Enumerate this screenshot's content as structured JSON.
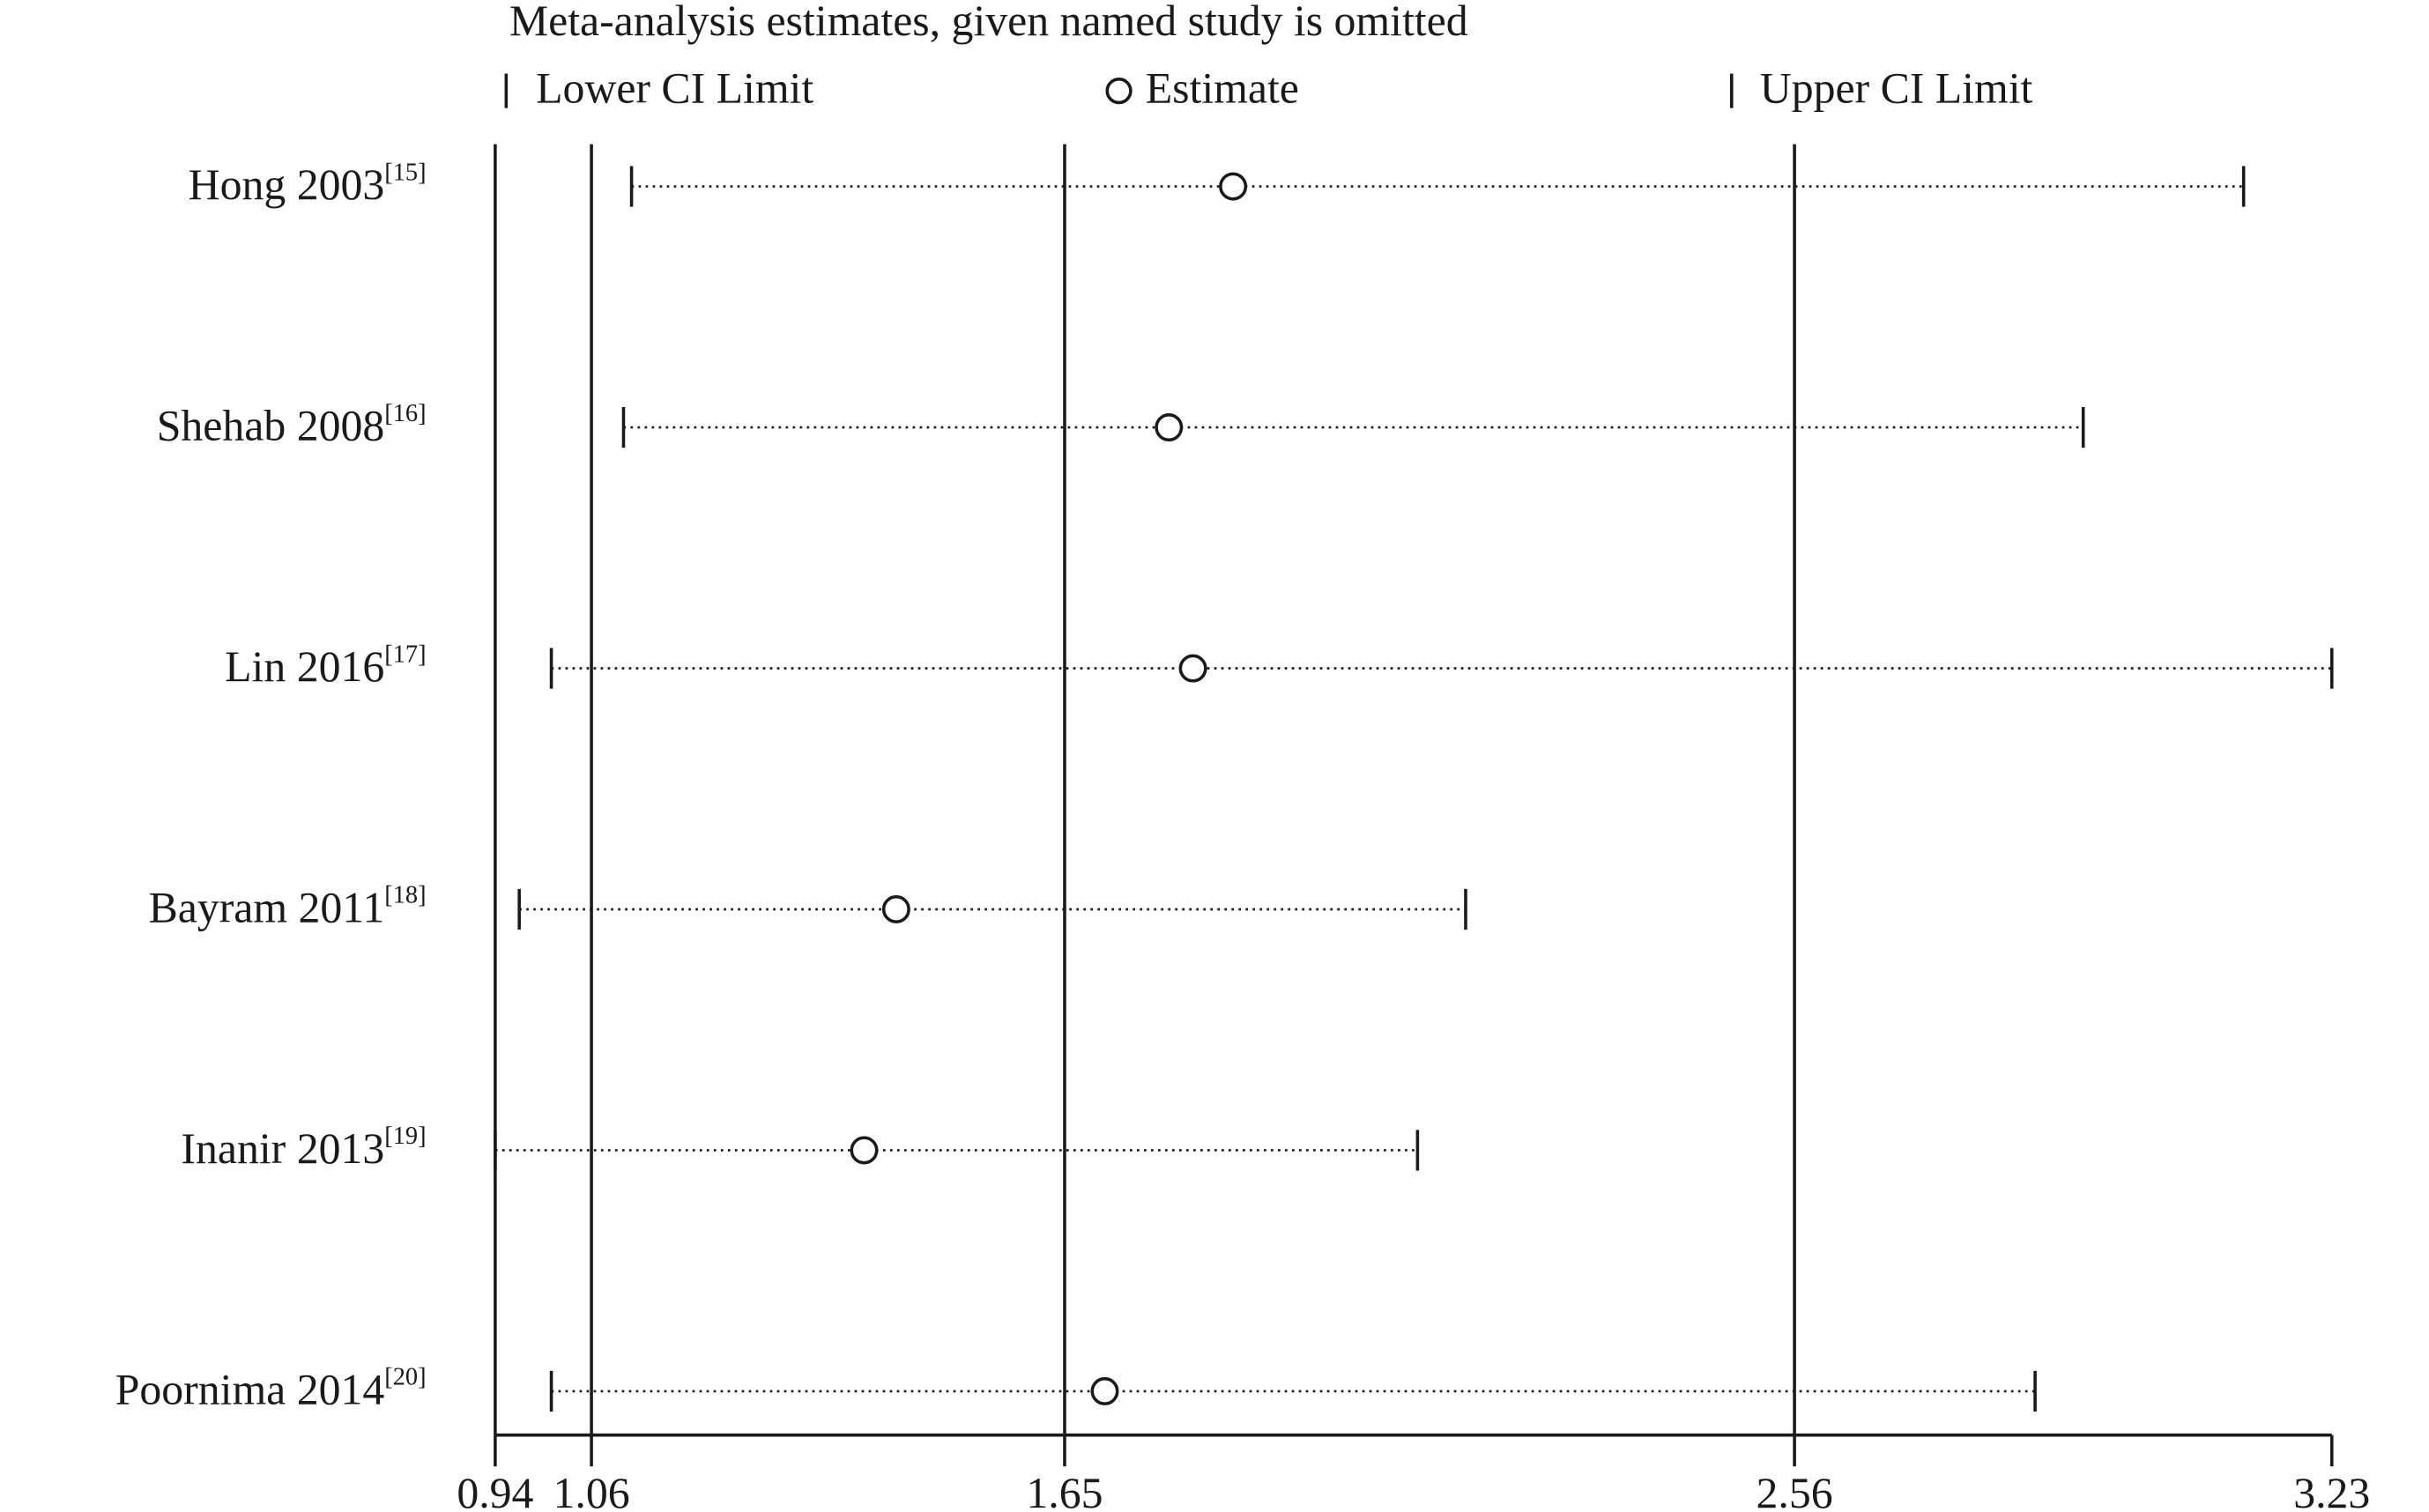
{
  "chart_data": {
    "type": "sensitivity",
    "title": "Meta-analysis estimates, given named study is omitted",
    "categories": [
      "Hong 2003",
      "Shehab 2008",
      "Lin 2016",
      "Bayram 2011",
      "Inanir 2013",
      "Poornima 2014"
    ],
    "references": [
      "[15]",
      "[16]",
      "[17]",
      "[18]",
      "[19]",
      "[20]"
    ],
    "series": [
      {
        "name": "Lower CI Limit",
        "values": [
          1.11,
          1.1,
          1.01,
          0.97,
          0.94,
          1.01
        ]
      },
      {
        "name": "Estimate",
        "values": [
          1.86,
          1.78,
          1.81,
          1.44,
          1.4,
          1.7
        ]
      },
      {
        "name": "Upper CI Limit",
        "values": [
          3.12,
          2.92,
          3.23,
          2.15,
          2.09,
          2.86
        ]
      }
    ],
    "overall": {
      "lower": 1.06,
      "estimate": 1.65,
      "upper": 2.56
    },
    "xlim": [
      0.94,
      3.23
    ],
    "xticks": [
      0.94,
      1.06,
      1.65,
      2.56,
      3.23
    ],
    "color": "#1a1a1a"
  }
}
